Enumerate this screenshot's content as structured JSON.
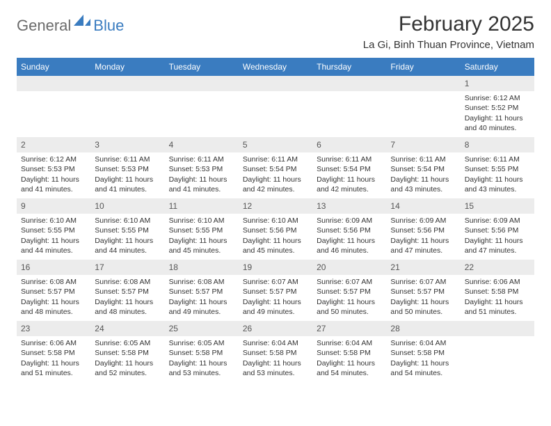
{
  "logo": {
    "general": "General",
    "blue": "Blue",
    "icon_color": "#3a7cc0"
  },
  "title": "February 2025",
  "location": "La Gi, Binh Thuan Province, Vietnam",
  "day_headers": [
    "Sunday",
    "Monday",
    "Tuesday",
    "Wednesday",
    "Thursday",
    "Friday",
    "Saturday"
  ],
  "colors": {
    "header_bg": "#3a7cc0",
    "header_text": "#ffffff",
    "daynum_bg": "#ececec",
    "text": "#333333",
    "logo_gray": "#6b6b6b",
    "logo_blue": "#3a7cc0"
  },
  "weeks": [
    [
      {
        "n": "",
        "empty": true
      },
      {
        "n": "",
        "empty": true
      },
      {
        "n": "",
        "empty": true
      },
      {
        "n": "",
        "empty": true
      },
      {
        "n": "",
        "empty": true
      },
      {
        "n": "",
        "empty": true
      },
      {
        "n": "1",
        "sunrise": "Sunrise: 6:12 AM",
        "sunset": "Sunset: 5:52 PM",
        "daylight1": "Daylight: 11 hours",
        "daylight2": "and 40 minutes."
      }
    ],
    [
      {
        "n": "2",
        "sunrise": "Sunrise: 6:12 AM",
        "sunset": "Sunset: 5:53 PM",
        "daylight1": "Daylight: 11 hours",
        "daylight2": "and 41 minutes."
      },
      {
        "n": "3",
        "sunrise": "Sunrise: 6:11 AM",
        "sunset": "Sunset: 5:53 PM",
        "daylight1": "Daylight: 11 hours",
        "daylight2": "and 41 minutes."
      },
      {
        "n": "4",
        "sunrise": "Sunrise: 6:11 AM",
        "sunset": "Sunset: 5:53 PM",
        "daylight1": "Daylight: 11 hours",
        "daylight2": "and 41 minutes."
      },
      {
        "n": "5",
        "sunrise": "Sunrise: 6:11 AM",
        "sunset": "Sunset: 5:54 PM",
        "daylight1": "Daylight: 11 hours",
        "daylight2": "and 42 minutes."
      },
      {
        "n": "6",
        "sunrise": "Sunrise: 6:11 AM",
        "sunset": "Sunset: 5:54 PM",
        "daylight1": "Daylight: 11 hours",
        "daylight2": "and 42 minutes."
      },
      {
        "n": "7",
        "sunrise": "Sunrise: 6:11 AM",
        "sunset": "Sunset: 5:54 PM",
        "daylight1": "Daylight: 11 hours",
        "daylight2": "and 43 minutes."
      },
      {
        "n": "8",
        "sunrise": "Sunrise: 6:11 AM",
        "sunset": "Sunset: 5:55 PM",
        "daylight1": "Daylight: 11 hours",
        "daylight2": "and 43 minutes."
      }
    ],
    [
      {
        "n": "9",
        "sunrise": "Sunrise: 6:10 AM",
        "sunset": "Sunset: 5:55 PM",
        "daylight1": "Daylight: 11 hours",
        "daylight2": "and 44 minutes."
      },
      {
        "n": "10",
        "sunrise": "Sunrise: 6:10 AM",
        "sunset": "Sunset: 5:55 PM",
        "daylight1": "Daylight: 11 hours",
        "daylight2": "and 44 minutes."
      },
      {
        "n": "11",
        "sunrise": "Sunrise: 6:10 AM",
        "sunset": "Sunset: 5:55 PM",
        "daylight1": "Daylight: 11 hours",
        "daylight2": "and 45 minutes."
      },
      {
        "n": "12",
        "sunrise": "Sunrise: 6:10 AM",
        "sunset": "Sunset: 5:56 PM",
        "daylight1": "Daylight: 11 hours",
        "daylight2": "and 45 minutes."
      },
      {
        "n": "13",
        "sunrise": "Sunrise: 6:09 AM",
        "sunset": "Sunset: 5:56 PM",
        "daylight1": "Daylight: 11 hours",
        "daylight2": "and 46 minutes."
      },
      {
        "n": "14",
        "sunrise": "Sunrise: 6:09 AM",
        "sunset": "Sunset: 5:56 PM",
        "daylight1": "Daylight: 11 hours",
        "daylight2": "and 47 minutes."
      },
      {
        "n": "15",
        "sunrise": "Sunrise: 6:09 AM",
        "sunset": "Sunset: 5:56 PM",
        "daylight1": "Daylight: 11 hours",
        "daylight2": "and 47 minutes."
      }
    ],
    [
      {
        "n": "16",
        "sunrise": "Sunrise: 6:08 AM",
        "sunset": "Sunset: 5:57 PM",
        "daylight1": "Daylight: 11 hours",
        "daylight2": "and 48 minutes."
      },
      {
        "n": "17",
        "sunrise": "Sunrise: 6:08 AM",
        "sunset": "Sunset: 5:57 PM",
        "daylight1": "Daylight: 11 hours",
        "daylight2": "and 48 minutes."
      },
      {
        "n": "18",
        "sunrise": "Sunrise: 6:08 AM",
        "sunset": "Sunset: 5:57 PM",
        "daylight1": "Daylight: 11 hours",
        "daylight2": "and 49 minutes."
      },
      {
        "n": "19",
        "sunrise": "Sunrise: 6:07 AM",
        "sunset": "Sunset: 5:57 PM",
        "daylight1": "Daylight: 11 hours",
        "daylight2": "and 49 minutes."
      },
      {
        "n": "20",
        "sunrise": "Sunrise: 6:07 AM",
        "sunset": "Sunset: 5:57 PM",
        "daylight1": "Daylight: 11 hours",
        "daylight2": "and 50 minutes."
      },
      {
        "n": "21",
        "sunrise": "Sunrise: 6:07 AM",
        "sunset": "Sunset: 5:57 PM",
        "daylight1": "Daylight: 11 hours",
        "daylight2": "and 50 minutes."
      },
      {
        "n": "22",
        "sunrise": "Sunrise: 6:06 AM",
        "sunset": "Sunset: 5:58 PM",
        "daylight1": "Daylight: 11 hours",
        "daylight2": "and 51 minutes."
      }
    ],
    [
      {
        "n": "23",
        "sunrise": "Sunrise: 6:06 AM",
        "sunset": "Sunset: 5:58 PM",
        "daylight1": "Daylight: 11 hours",
        "daylight2": "and 51 minutes."
      },
      {
        "n": "24",
        "sunrise": "Sunrise: 6:05 AM",
        "sunset": "Sunset: 5:58 PM",
        "daylight1": "Daylight: 11 hours",
        "daylight2": "and 52 minutes."
      },
      {
        "n": "25",
        "sunrise": "Sunrise: 6:05 AM",
        "sunset": "Sunset: 5:58 PM",
        "daylight1": "Daylight: 11 hours",
        "daylight2": "and 53 minutes."
      },
      {
        "n": "26",
        "sunrise": "Sunrise: 6:04 AM",
        "sunset": "Sunset: 5:58 PM",
        "daylight1": "Daylight: 11 hours",
        "daylight2": "and 53 minutes."
      },
      {
        "n": "27",
        "sunrise": "Sunrise: 6:04 AM",
        "sunset": "Sunset: 5:58 PM",
        "daylight1": "Daylight: 11 hours",
        "daylight2": "and 54 minutes."
      },
      {
        "n": "28",
        "sunrise": "Sunrise: 6:04 AM",
        "sunset": "Sunset: 5:58 PM",
        "daylight1": "Daylight: 11 hours",
        "daylight2": "and 54 minutes."
      },
      {
        "n": "",
        "empty": true
      }
    ]
  ]
}
